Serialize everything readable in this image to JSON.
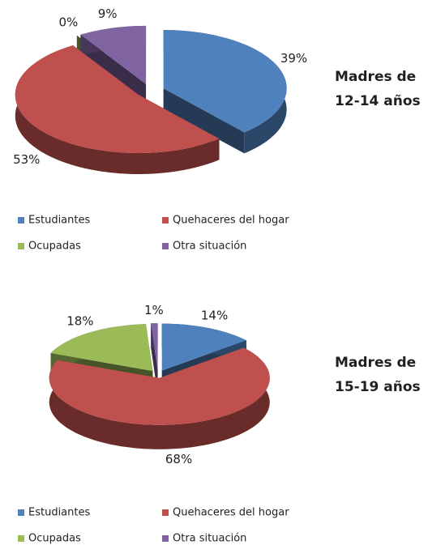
{
  "chart_data": [
    {
      "type": "pie",
      "title_lines": [
        "Madres de",
        "12-14 años"
      ],
      "categories": [
        "Estudiantes",
        "Quehaceres del hogar",
        "Ocupadas",
        "Otra situación"
      ],
      "values": [
        39,
        53,
        0,
        9
      ],
      "value_labels": [
        "39%",
        "53%",
        "0%",
        "9%"
      ],
      "colors": [
        "#4f81bd",
        "#c0504d",
        "#9bbb59",
        "#8064a2"
      ]
    },
    {
      "type": "pie",
      "title_lines": [
        "Madres de",
        "15-19 años"
      ],
      "categories": [
        "Estudiantes",
        "Quehaceres del hogar",
        "Ocupadas",
        "Otra situación"
      ],
      "values": [
        14,
        68,
        18,
        1
      ],
      "value_labels": [
        "14%",
        "68%",
        "18%",
        "1%"
      ],
      "colors": [
        "#4f81bd",
        "#c0504d",
        "#9bbb59",
        "#8064a2"
      ]
    }
  ]
}
